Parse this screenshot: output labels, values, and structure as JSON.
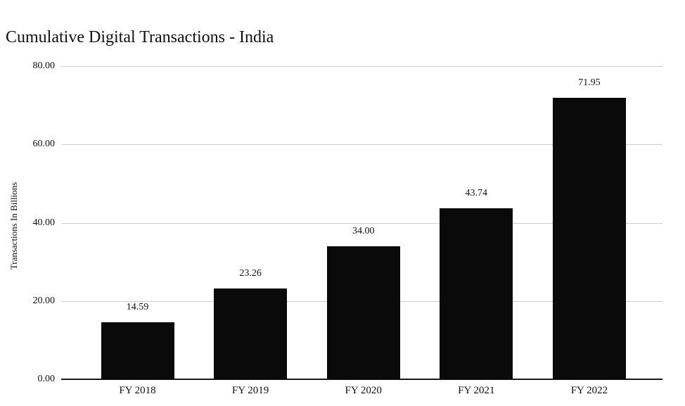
{
  "chart_data": {
    "type": "bar",
    "title": "Cumulative Digital Transactions - India",
    "xlabel": "",
    "ylabel": "Transactions In Billions",
    "categories": [
      "FY 2018",
      "FY 2019",
      "FY 2020",
      "FY 2021",
      "FY 2022"
    ],
    "values": [
      14.59,
      23.26,
      34.0,
      43.74,
      71.95
    ],
    "value_labels": [
      "14.59",
      "23.26",
      "34.00",
      "43.74",
      "71.95"
    ],
    "y_ticks": [
      {
        "value": 0,
        "label": "0.00"
      },
      {
        "value": 20,
        "label": "20.00"
      },
      {
        "value": 40,
        "label": "40.00"
      },
      {
        "value": 60,
        "label": "60.00"
      },
      {
        "value": 80,
        "label": "80.00"
      }
    ],
    "ylim": [
      0,
      80
    ],
    "grid": true,
    "legend": "none",
    "colors": {
      "bar": "#0a0a0a",
      "gridline": "#cccccc",
      "axis_line": "#1a1a1a",
      "text": "#111111",
      "background": "#ffffff"
    }
  }
}
